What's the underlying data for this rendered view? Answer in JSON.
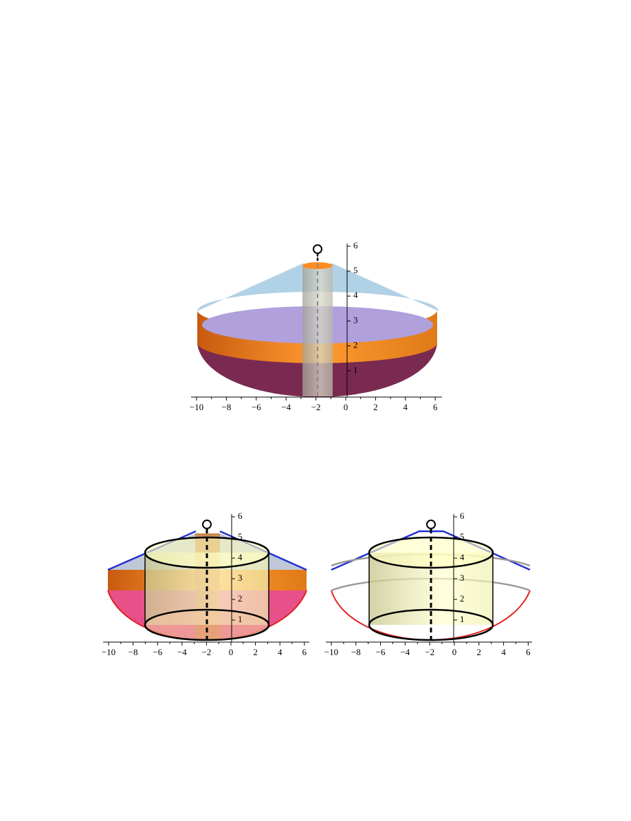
{
  "figures": [
    {
      "xticks": [
        "−10",
        "−8",
        "−6",
        "−4",
        "−2",
        "0",
        "2",
        "4",
        "6"
      ],
      "zticks": [
        "1",
        "2",
        "3",
        "4",
        "5",
        "6"
      ]
    },
    {
      "xticks": [
        "−10",
        "−8",
        "−6",
        "−4",
        "−2",
        "0",
        "2",
        "4",
        "6"
      ],
      "zticks": [
        "1",
        "2",
        "3",
        "4",
        "5",
        "6"
      ]
    },
    {
      "xticks": [
        "−10",
        "−8",
        "−6",
        "−4",
        "−2",
        "0",
        "2",
        "4",
        "6"
      ],
      "zticks": [
        "1",
        "2",
        "3",
        "4",
        "5",
        "6"
      ]
    }
  ]
}
